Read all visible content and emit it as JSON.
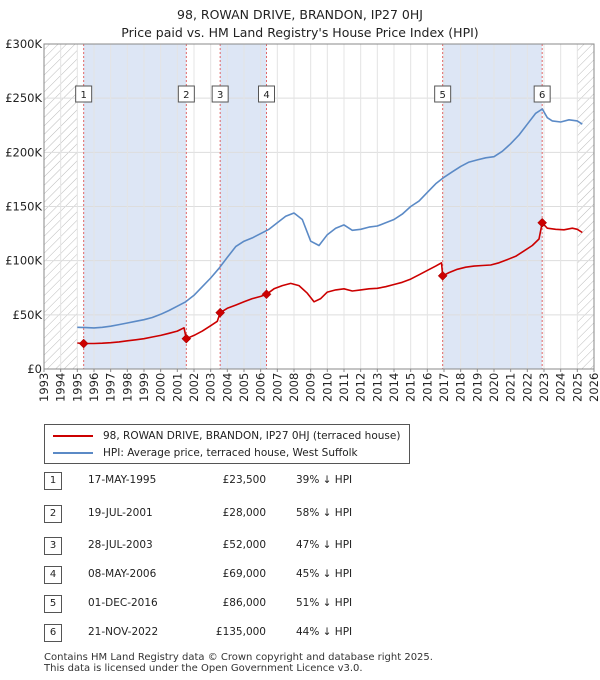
{
  "chart_data": {
    "type": "line",
    "title": "98, ROWAN DRIVE, BRANDON, IP27 0HJ",
    "subtitle": "Price paid vs. HM Land Registry's House Price Index (HPI)",
    "xlim": [
      1993,
      2026
    ],
    "ylim": [
      0,
      300000
    ],
    "yticks": [
      {
        "value": 0,
        "label": "£0"
      },
      {
        "value": 50000,
        "label": "£50K"
      },
      {
        "value": 100000,
        "label": "£100K"
      },
      {
        "value": 150000,
        "label": "£150K"
      },
      {
        "value": 200000,
        "label": "£200K"
      },
      {
        "value": 250000,
        "label": "£250K"
      },
      {
        "value": 300000,
        "label": "£300K"
      }
    ],
    "xticks": [
      "1993",
      "1994",
      "1995",
      "1996",
      "1997",
      "1998",
      "1999",
      "2000",
      "2001",
      "2002",
      "2003",
      "2004",
      "2005",
      "2006",
      "2007",
      "2008",
      "2009",
      "2010",
      "2011",
      "2012",
      "2013",
      "2014",
      "2015",
      "2016",
      "2017",
      "2018",
      "2019",
      "2020",
      "2021",
      "2022",
      "2023",
      "2024",
      "2025",
      "2026"
    ],
    "hatched_ranges": [
      [
        1993,
        1995.0
      ],
      [
        2025.0,
        2026
      ]
    ],
    "shaded_ranges": [
      [
        1995.37,
        2001.54
      ],
      [
        2003.57,
        2006.35
      ],
      [
        2016.92,
        2022.89
      ]
    ],
    "colors": {
      "price": "#cc0000",
      "hpi": "#5b8ac6",
      "shade": "#dde6f5",
      "marker_line": "#e06666"
    },
    "series": [
      {
        "name": "HPI: Average price, terraced house, West Suffolk",
        "color": "#5b8ac6",
        "points": [
          [
            1995.0,
            38500
          ],
          [
            1995.5,
            38200
          ],
          [
            1996.0,
            37900
          ],
          [
            1996.5,
            38500
          ],
          [
            1997.0,
            39500
          ],
          [
            1997.5,
            41000
          ],
          [
            1998.0,
            42500
          ],
          [
            1998.5,
            44000
          ],
          [
            1999.0,
            45500
          ],
          [
            1999.5,
            47500
          ],
          [
            2000.0,
            50500
          ],
          [
            2000.5,
            54000
          ],
          [
            2001.0,
            58000
          ],
          [
            2001.5,
            62000
          ],
          [
            2002.0,
            68000
          ],
          [
            2002.5,
            76000
          ],
          [
            2003.0,
            84000
          ],
          [
            2003.5,
            93000
          ],
          [
            2004.0,
            103000
          ],
          [
            2004.5,
            113000
          ],
          [
            2005.0,
            118000
          ],
          [
            2005.5,
            121000
          ],
          [
            2006.0,
            125000
          ],
          [
            2006.5,
            129000
          ],
          [
            2007.0,
            135000
          ],
          [
            2007.5,
            141000
          ],
          [
            2008.0,
            144000
          ],
          [
            2008.5,
            138000
          ],
          [
            2009.0,
            118000
          ],
          [
            2009.5,
            114000
          ],
          [
            2010.0,
            124000
          ],
          [
            2010.5,
            130000
          ],
          [
            2011.0,
            133000
          ],
          [
            2011.5,
            128000
          ],
          [
            2012.0,
            129000
          ],
          [
            2012.5,
            131000
          ],
          [
            2013.0,
            132000
          ],
          [
            2013.5,
            135000
          ],
          [
            2014.0,
            138000
          ],
          [
            2014.5,
            143000
          ],
          [
            2015.0,
            150000
          ],
          [
            2015.5,
            155000
          ],
          [
            2016.0,
            163000
          ],
          [
            2016.5,
            171000
          ],
          [
            2017.0,
            177000
          ],
          [
            2017.5,
            182000
          ],
          [
            2018.0,
            187000
          ],
          [
            2018.5,
            191000
          ],
          [
            2019.0,
            193000
          ],
          [
            2019.5,
            195000
          ],
          [
            2020.0,
            196000
          ],
          [
            2020.5,
            201000
          ],
          [
            2021.0,
            208000
          ],
          [
            2021.5,
            216000
          ],
          [
            2022.0,
            226000
          ],
          [
            2022.5,
            236000
          ],
          [
            2022.9,
            240000
          ],
          [
            2023.2,
            232000
          ],
          [
            2023.5,
            229000
          ],
          [
            2024.0,
            228000
          ],
          [
            2024.5,
            230000
          ],
          [
            2025.0,
            229000
          ],
          [
            2025.3,
            226000
          ]
        ]
      },
      {
        "name": "98, ROWAN DRIVE, BRANDON, IP27 0HJ (terraced house)",
        "color": "#cc0000",
        "points": [
          [
            1995.0,
            24000
          ],
          [
            1995.38,
            23500
          ],
          [
            1996.0,
            23500
          ],
          [
            1996.5,
            23800
          ],
          [
            1997.0,
            24300
          ],
          [
            1997.5,
            25000
          ],
          [
            1998.0,
            26000
          ],
          [
            1998.5,
            27000
          ],
          [
            1999.0,
            28000
          ],
          [
            1999.5,
            29500
          ],
          [
            2000.0,
            31000
          ],
          [
            2000.5,
            33000
          ],
          [
            2001.0,
            35000
          ],
          [
            2001.4,
            38000
          ],
          [
            2001.54,
            28000
          ],
          [
            2002.0,
            31000
          ],
          [
            2002.5,
            35000
          ],
          [
            2003.0,
            40000
          ],
          [
            2003.4,
            44000
          ],
          [
            2003.57,
            52000
          ],
          [
            2004.0,
            56000
          ],
          [
            2004.5,
            59000
          ],
          [
            2005.0,
            62000
          ],
          [
            2005.5,
            65000
          ],
          [
            2006.0,
            67000
          ],
          [
            2006.35,
            69000
          ],
          [
            2006.8,
            74000
          ],
          [
            2007.3,
            77000
          ],
          [
            2007.8,
            79000
          ],
          [
            2008.3,
            77000
          ],
          [
            2008.8,
            70000
          ],
          [
            2009.2,
            62000
          ],
          [
            2009.6,
            65000
          ],
          [
            2010.0,
            71000
          ],
          [
            2010.5,
            73000
          ],
          [
            2011.0,
            74000
          ],
          [
            2011.5,
            72000
          ],
          [
            2012.0,
            73000
          ],
          [
            2012.5,
            74000
          ],
          [
            2013.0,
            74500
          ],
          [
            2013.5,
            76000
          ],
          [
            2014.0,
            78000
          ],
          [
            2014.5,
            80000
          ],
          [
            2015.0,
            83000
          ],
          [
            2015.5,
            87000
          ],
          [
            2016.0,
            91000
          ],
          [
            2016.5,
            95000
          ],
          [
            2016.85,
            98000
          ],
          [
            2016.92,
            86000
          ],
          [
            2017.3,
            89000
          ],
          [
            2017.8,
            92000
          ],
          [
            2018.3,
            94000
          ],
          [
            2018.8,
            95000
          ],
          [
            2019.3,
            95500
          ],
          [
            2019.8,
            96000
          ],
          [
            2020.3,
            98000
          ],
          [
            2020.8,
            101000
          ],
          [
            2021.3,
            104000
          ],
          [
            2021.8,
            109000
          ],
          [
            2022.3,
            114000
          ],
          [
            2022.7,
            120000
          ],
          [
            2022.89,
            135000
          ],
          [
            2023.2,
            130000
          ],
          [
            2023.7,
            129000
          ],
          [
            2024.2,
            128500
          ],
          [
            2024.7,
            130000
          ],
          [
            2025.0,
            129000
          ],
          [
            2025.3,
            126000
          ]
        ]
      }
    ],
    "sale_markers": [
      {
        "label": "1",
        "x": 1995.38,
        "y": 23500
      },
      {
        "label": "2",
        "x": 2001.54,
        "y": 28000
      },
      {
        "label": "3",
        "x": 2003.57,
        "y": 52000
      },
      {
        "label": "4",
        "x": 2006.35,
        "y": 69000
      },
      {
        "label": "5",
        "x": 2016.92,
        "y": 86000
      },
      {
        "label": "6",
        "x": 2022.89,
        "y": 135000
      }
    ]
  },
  "legend": {
    "price_label": "98, ROWAN DRIVE, BRANDON, IP27 0HJ (terraced house)",
    "hpi_label": "HPI: Average price, terraced house, West Suffolk"
  },
  "sales": [
    {
      "num": "1",
      "date": "17-MAY-1995",
      "price": "£23,500",
      "hpi": "39% ↓ HPI"
    },
    {
      "num": "2",
      "date": "19-JUL-2001",
      "price": "£28,000",
      "hpi": "58% ↓ HPI"
    },
    {
      "num": "3",
      "date": "28-JUL-2003",
      "price": "£52,000",
      "hpi": "47% ↓ HPI"
    },
    {
      "num": "4",
      "date": "08-MAY-2006",
      "price": "£69,000",
      "hpi": "45% ↓ HPI"
    },
    {
      "num": "5",
      "date": "01-DEC-2016",
      "price": "£86,000",
      "hpi": "51% ↓ HPI"
    },
    {
      "num": "6",
      "date": "21-NOV-2022",
      "price": "£135,000",
      "hpi": "44% ↓ HPI"
    }
  ],
  "footer": {
    "line1": "Contains HM Land Registry data © Crown copyright and database right 2025.",
    "line2": "This data is licensed under the Open Government Licence v3.0."
  }
}
